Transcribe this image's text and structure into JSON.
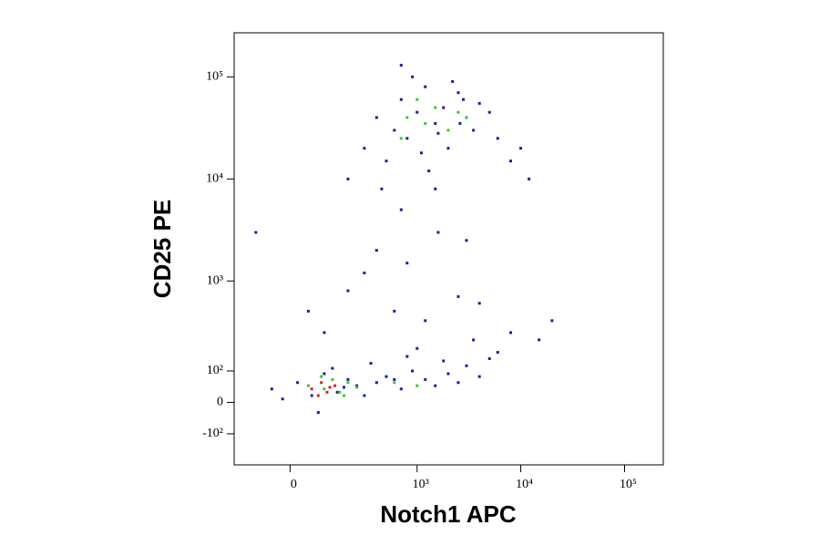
{
  "chart_data": {
    "type": "scatter",
    "scale": "biexponential",
    "x_label": "Notch1 APC",
    "y_label": "CD25 PE",
    "xlim": [
      -190,
      236000
    ],
    "ylim": [
      -250,
      270000
    ],
    "xticks": [
      0,
      {
        "value": 1000,
        "label": "10³"
      },
      {
        "value": 10000,
        "label": "10⁴"
      },
      {
        "value": 100000,
        "label": "10⁵"
      }
    ],
    "yticks": [
      {
        "value": -100,
        "label": "-10²"
      },
      0,
      {
        "value": 100,
        "label": "10²"
      },
      {
        "value": 1000,
        "label": "10³"
      },
      {
        "value": 10000,
        "label": "10⁴"
      },
      {
        "value": 100000,
        "label": "10⁵"
      }
    ],
    "series": [
      {
        "color": "#1c1ca8",
        "x": [
          -50,
          20,
          60,
          100,
          150,
          200,
          250,
          300,
          400,
          500,
          700,
          900,
          1200,
          1500,
          2000,
          2500,
          3000,
          4000,
          5000,
          -20,
          80,
          130,
          180,
          350,
          600,
          800,
          1000,
          1800,
          3500,
          6000,
          100,
          200,
          400,
          600,
          800,
          1200,
          1600,
          2500,
          4000,
          8000,
          15000,
          -100,
          300,
          3000,
          50,
          700,
          1500,
          20000,
          300,
          400,
          500,
          600,
          700,
          800,
          1000,
          1200,
          1500,
          1800,
          2000,
          2500,
          3000,
          3500,
          4000,
          5000,
          6000,
          8000,
          10000,
          12000,
          200,
          450,
          900,
          1300,
          2200,
          2800,
          700,
          1100,
          1600,
          2600
        ],
        "y": [
          40,
          60,
          20,
          90,
          30,
          70,
          50,
          20,
          60,
          80,
          40,
          100,
          70,
          50,
          90,
          60,
          120,
          80,
          150,
          10,
          -30,
          110,
          45,
          130,
          70,
          160,
          200,
          140,
          250,
          180,
          300,
          800,
          2000,
          500,
          1500,
          400,
          3000,
          700,
          600,
          300,
          250,
          3000,
          1200,
          2500,
          500,
          5000,
          8000,
          400,
          20000,
          40000,
          15000,
          30000,
          60000,
          25000,
          45000,
          80000,
          35000,
          50000,
          20000,
          70000,
          40000,
          30000,
          55000,
          45000,
          25000,
          15000,
          20000,
          10000,
          10000,
          8000,
          100000,
          12000,
          90000,
          60000,
          130000,
          18000,
          28000,
          35000
        ]
      },
      {
        "color": "#33cc33",
        "x": [
          50,
          100,
          130,
          160,
          200,
          250,
          90,
          180,
          600,
          1000,
          800,
          1200,
          1500,
          2000,
          2500,
          700,
          3000,
          1000
        ],
        "y": [
          50,
          40,
          70,
          30,
          60,
          45,
          80,
          20,
          60,
          50,
          40000,
          35000,
          50000,
          30000,
          45000,
          25000,
          40000,
          60000
        ]
      },
      {
        "color": "#e02020",
        "x": [
          60,
          90,
          110,
          140,
          80,
          120
        ],
        "y": [
          40,
          60,
          30,
          50,
          20,
          45
        ]
      }
    ]
  }
}
